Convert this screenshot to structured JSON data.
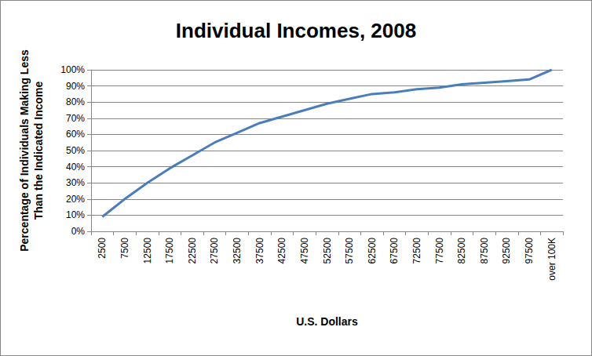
{
  "chart_data": {
    "type": "line",
    "title": "Individual Incomes, 2008",
    "x_label": "U.S. Dollars",
    "y_label": "Percentage of Individuals Making Less\nThan the Indicated Income",
    "categories": [
      "2500",
      "7500",
      "12500",
      "17500",
      "22500",
      "27500",
      "32500",
      "37500",
      "42500",
      "47500",
      "52500",
      "57500",
      "62500",
      "67500",
      "72500",
      "77500",
      "82500",
      "87500",
      "92500",
      "97500",
      "over 100K"
    ],
    "values": [
      9,
      20,
      30,
      39,
      47,
      55,
      61,
      67,
      71,
      75,
      79,
      82,
      85,
      86,
      88,
      89,
      91,
      92,
      93,
      94,
      100
    ],
    "color": "#4a7ebb",
    "ylim": [
      0,
      100
    ],
    "yticks": [
      {
        "value": 0,
        "label": "0%"
      },
      {
        "value": 10,
        "label": "10%"
      },
      {
        "value": 20,
        "label": "20%"
      },
      {
        "value": 30,
        "label": "30%"
      },
      {
        "value": 40,
        "label": "40%"
      },
      {
        "value": 50,
        "label": "50%"
      },
      {
        "value": 60,
        "label": "60%"
      },
      {
        "value": 70,
        "label": "70%"
      },
      {
        "value": 80,
        "label": "80%"
      },
      {
        "value": 90,
        "label": "90%"
      },
      {
        "value": 100,
        "label": "100%"
      }
    ],
    "grid": true
  }
}
